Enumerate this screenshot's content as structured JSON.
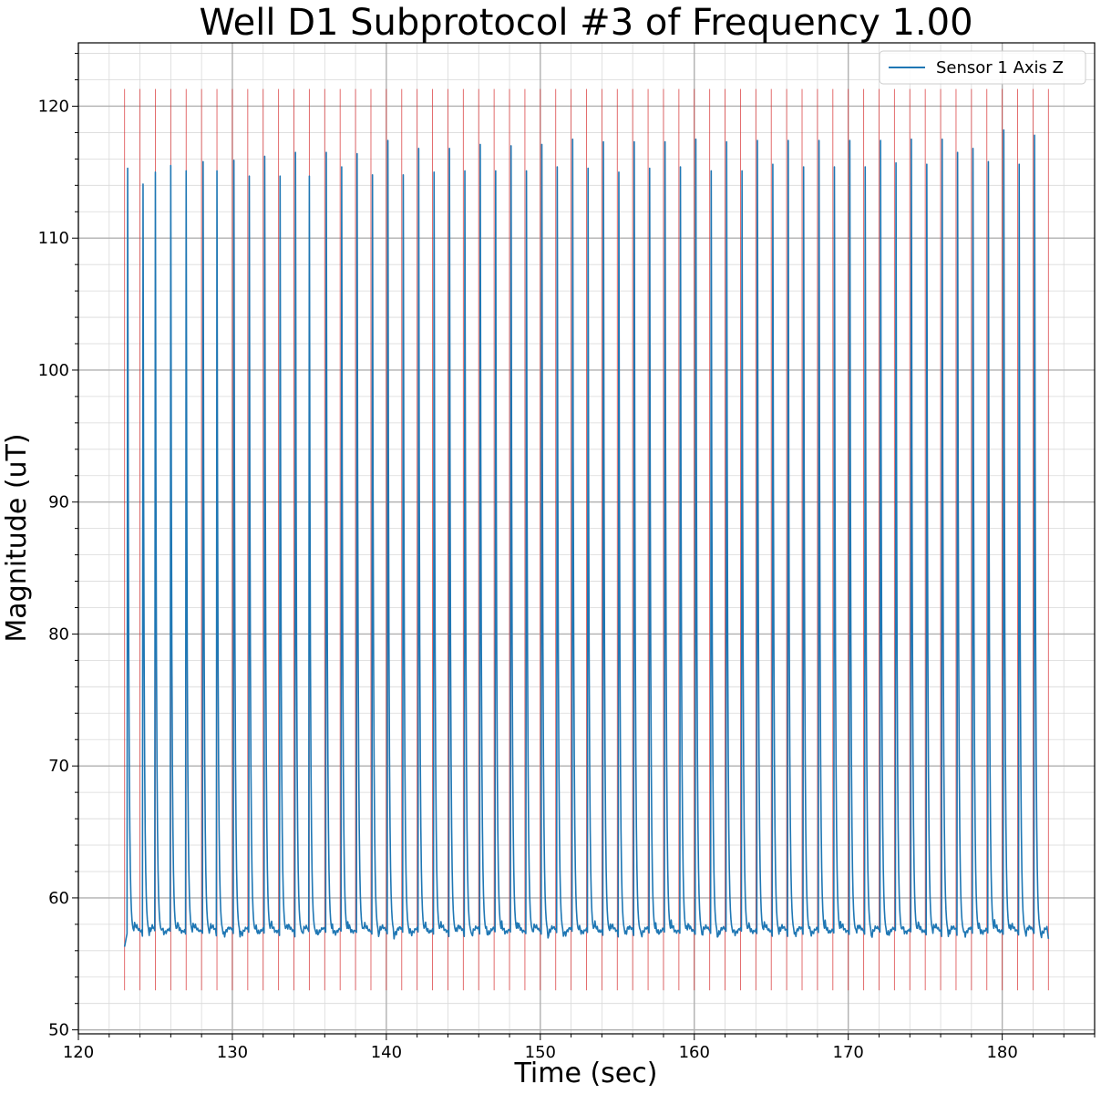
{
  "chart_data": {
    "type": "line",
    "title": "Well D1 Subprotocol #3 of Frequency 1.00",
    "xlabel": "Time (sec)",
    "ylabel": "Magnitude (uT)",
    "xlim": [
      120,
      186
    ],
    "ylim": [
      49.7,
      124.8
    ],
    "x_major_ticks": [
      120,
      130,
      140,
      150,
      160,
      170,
      180
    ],
    "x_tick_labels": [
      "120",
      "130",
      "140",
      "150",
      "160",
      "170",
      "180"
    ],
    "y_major_ticks": [
      50,
      60,
      70,
      80,
      90,
      100,
      110,
      120
    ],
    "y_tick_labels": [
      "50",
      "60",
      "70",
      "80",
      "90",
      "100",
      "110",
      "120"
    ],
    "grid": true,
    "legend_position": "top-right",
    "series": [
      {
        "name": "Sensor 1 Axis Z",
        "color": "#1f77b4",
        "start_time": 123.0,
        "end_time": 183.0,
        "start_value": 56.3,
        "baseline": 57.3,
        "peak_times": [
          123.2,
          124.2,
          125.0,
          126.0,
          127.0,
          128.1,
          129.0,
          130.1,
          131.1,
          132.1,
          133.1,
          134.1,
          135.0,
          136.1,
          137.1,
          138.1,
          139.1,
          140.1,
          141.1,
          142.1,
          143.1,
          144.1,
          145.1,
          146.1,
          147.1,
          148.1,
          149.1,
          150.1,
          151.1,
          152.1,
          153.1,
          154.1,
          155.1,
          156.1,
          157.1,
          158.1,
          159.1,
          160.1,
          161.1,
          162.1,
          163.1,
          164.1,
          165.1,
          166.1,
          167.1,
          168.1,
          169.1,
          170.1,
          171.1,
          172.1,
          173.1,
          174.1,
          175.1,
          176.1,
          177.1,
          178.1,
          179.1,
          180.1,
          181.1,
          182.1
        ],
        "peak_values": [
          115.3,
          114.1,
          115.0,
          115.5,
          115.1,
          115.8,
          115.1,
          115.9,
          114.7,
          116.2,
          114.7,
          116.5,
          114.7,
          116.5,
          115.4,
          116.4,
          114.8,
          117.4,
          114.8,
          116.8,
          115.0,
          116.8,
          115.1,
          117.1,
          115.1,
          117.0,
          115.1,
          117.1,
          115.4,
          117.5,
          115.3,
          117.3,
          115.0,
          117.3,
          115.3,
          117.3,
          115.4,
          117.5,
          115.1,
          117.3,
          115.1,
          117.4,
          115.6,
          117.4,
          115.4,
          117.4,
          115.4,
          117.4,
          115.4,
          117.4,
          115.7,
          117.5,
          115.6,
          117.5,
          116.5,
          116.8,
          115.8,
          118.2,
          115.6,
          117.8
        ]
      }
    ],
    "markers": {
      "color": "#d62728",
      "times": [
        123.0,
        124.0,
        125.0,
        126.0,
        127.0,
        128.0,
        129.0,
        130.0,
        131.0,
        132.0,
        133.0,
        134.0,
        135.0,
        136.0,
        137.0,
        138.0,
        139.0,
        140.0,
        141.0,
        142.0,
        143.0,
        144.0,
        145.0,
        146.0,
        147.0,
        148.0,
        149.0,
        150.0,
        151.0,
        152.0,
        153.0,
        154.0,
        155.0,
        156.0,
        157.0,
        158.0,
        159.0,
        160.0,
        161.0,
        162.0,
        163.0,
        164.0,
        165.0,
        166.0,
        167.0,
        168.0,
        169.0,
        170.0,
        171.0,
        172.0,
        173.0,
        174.0,
        175.0,
        176.0,
        177.0,
        178.0,
        179.0,
        180.0,
        181.0,
        182.0,
        183.0
      ],
      "y_range": [
        53.0,
        121.3
      ]
    }
  }
}
